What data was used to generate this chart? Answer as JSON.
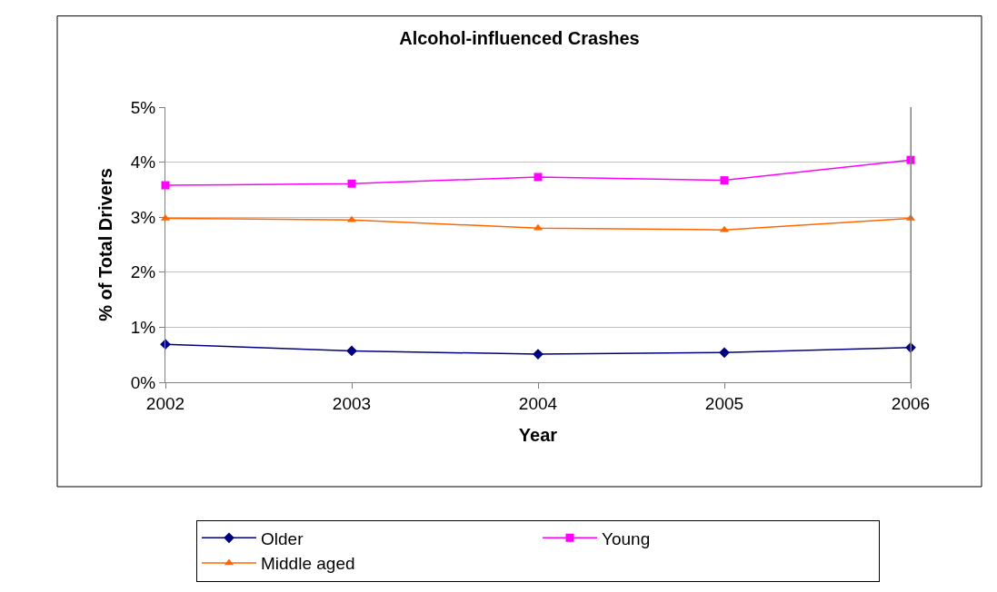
{
  "chart_data": {
    "type": "line",
    "title": "Alcohol-influenced Crashes",
    "xlabel": "Year",
    "ylabel": "% of Total Drivers",
    "categories": [
      "2002",
      "2003",
      "2004",
      "2005",
      "2006"
    ],
    "series": [
      {
        "name": "Older",
        "color": "#000080",
        "marker": "diamond",
        "values": [
          0.69,
          0.57,
          0.51,
          0.54,
          0.63
        ]
      },
      {
        "name": "Young",
        "color": "#ff00ff",
        "marker": "square",
        "values": [
          3.58,
          3.61,
          3.73,
          3.67,
          4.04
        ]
      },
      {
        "name": "Middle aged",
        "color": "#ff6600",
        "marker": "triangle",
        "values": [
          2.98,
          2.95,
          2.8,
          2.77,
          2.98
        ]
      }
    ],
    "ylim": [
      0,
      5
    ],
    "yticks": [
      {
        "value": 0,
        "label": "0%"
      },
      {
        "value": 1,
        "label": "1%"
      },
      {
        "value": 2,
        "label": "2%"
      },
      {
        "value": 3,
        "label": "3%"
      },
      {
        "value": 4,
        "label": "4%"
      },
      {
        "value": 5,
        "label": "5%"
      }
    ],
    "grid": "y",
    "legend": "bottom",
    "line_style": "solid"
  }
}
